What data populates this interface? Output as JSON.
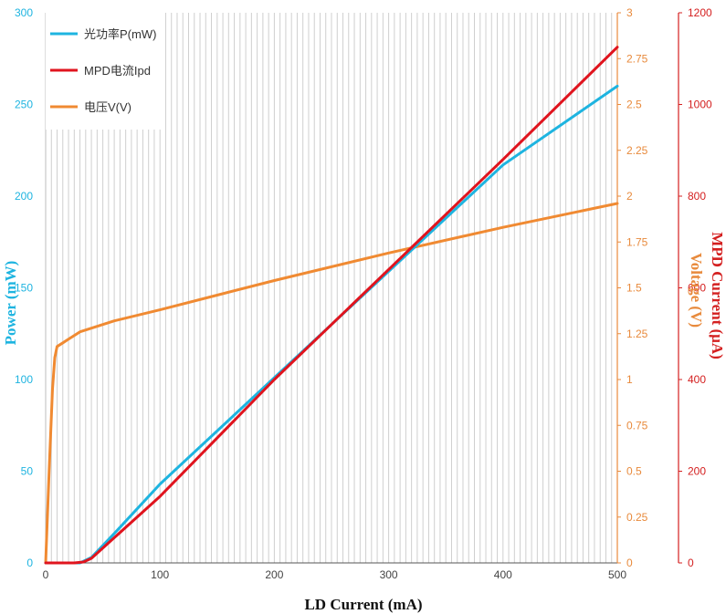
{
  "chart_data": {
    "type": "line",
    "title": "",
    "xlabel": "LD Current (mA)",
    "ylabel_left": "Power (mW)",
    "ylabel_right_inner": "Voltage (V)",
    "ylabel_right_outer": "MPD Current (μA)",
    "xlim": [
      0,
      500
    ],
    "x_ticks": [
      0,
      100,
      200,
      300,
      400,
      500
    ],
    "y_left_lim": [
      0,
      300
    ],
    "y_left_ticks": [
      0,
      50,
      100,
      150,
      200,
      250,
      300
    ],
    "y_right_inner_lim": [
      0,
      3
    ],
    "y_right_inner_ticks": [
      "0",
      "0.25",
      "0.5",
      "0.75",
      "1",
      "1.25",
      "1.5",
      "1.75",
      "2",
      "2.25",
      "2.5",
      "2.75",
      "3"
    ],
    "y_right_outer_lim": [
      0,
      1200
    ],
    "y_right_outer_ticks": [
      0,
      200,
      400,
      600,
      800,
      1000,
      1200
    ],
    "grid": "vertical",
    "legend_position": "top-left",
    "colors": {
      "power": "#1eb4e0",
      "mpd": "#e0141e",
      "voltage": "#f08a32",
      "axis_left": "#1eb4e0",
      "axis_right_inner": "#e88a3c",
      "axis_right_outer": "#d42020",
      "grid": "#cfcfcf",
      "axis_bottom": "#555555"
    },
    "series": [
      {
        "key": "power",
        "name": "光功率P(mW)",
        "axis": "left",
        "points": [
          [
            0,
            0
          ],
          [
            30,
            0
          ],
          [
            40,
            3
          ],
          [
            60,
            16
          ],
          [
            100,
            43
          ],
          [
            200,
            101
          ],
          [
            300,
            159
          ],
          [
            400,
            217
          ],
          [
            500,
            260
          ]
        ]
      },
      {
        "key": "mpd",
        "name": "MPD电流Ipd",
        "axis": "right_outer",
        "points": [
          [
            0,
            0
          ],
          [
            25,
            0
          ],
          [
            33,
            2
          ],
          [
            40,
            10
          ],
          [
            100,
            145
          ],
          [
            200,
            400
          ],
          [
            300,
            640
          ],
          [
            400,
            880
          ],
          [
            500,
            1125
          ]
        ]
      },
      {
        "key": "voltage",
        "name": "电压V(V)",
        "axis": "right_inner",
        "points": [
          [
            0,
            0
          ],
          [
            3,
            0.5
          ],
          [
            6,
            0.95
          ],
          [
            8,
            1.12
          ],
          [
            10,
            1.18
          ],
          [
            15,
            1.2
          ],
          [
            20,
            1.22
          ],
          [
            30,
            1.26
          ],
          [
            40,
            1.28
          ],
          [
            60,
            1.32
          ],
          [
            100,
            1.38
          ],
          [
            150,
            1.46
          ],
          [
            200,
            1.54
          ],
          [
            300,
            1.69
          ],
          [
            400,
            1.83
          ],
          [
            500,
            1.96
          ]
        ]
      }
    ]
  }
}
